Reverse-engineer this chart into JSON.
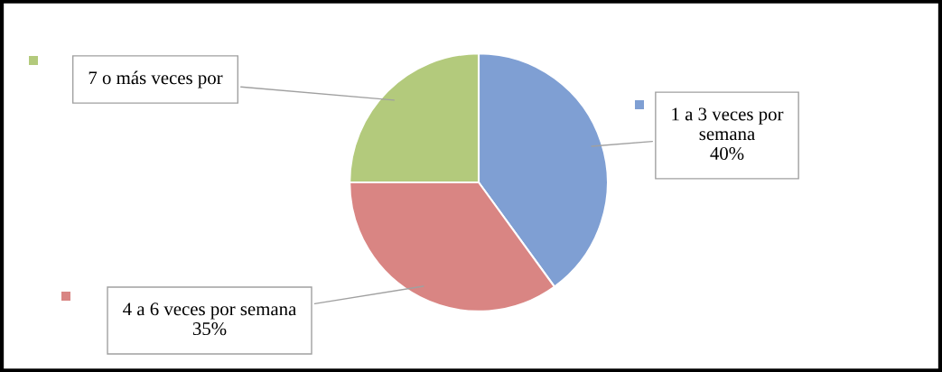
{
  "chart_data": {
    "type": "pie",
    "categories": [
      "1 a 3 veces por\nsemana",
      "4 a 6 veces por semana",
      "7 o más veces por"
    ],
    "values": [
      40,
      35,
      25
    ],
    "value_labels": [
      "40%",
      "35%",
      null
    ],
    "colors": [
      "#7f9fd3",
      "#d98583",
      "#b3ca7c"
    ]
  }
}
